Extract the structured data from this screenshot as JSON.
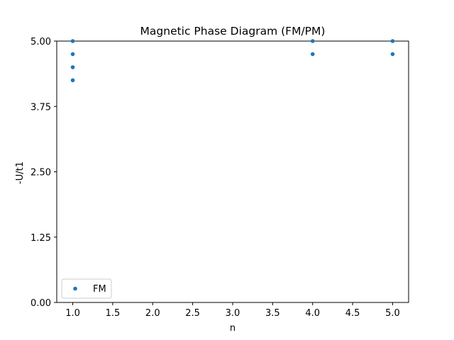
{
  "chart_data": {
    "type": "scatter",
    "title": "Magnetic Phase Diagram (FM/PM)",
    "xlabel": "n",
    "ylabel": "-U/t1",
    "xlim": [
      0.8,
      5.2
    ],
    "ylim": [
      0.0,
      5.0
    ],
    "xticks": [
      "1.0",
      "1.5",
      "2.0",
      "2.5",
      "3.0",
      "3.5",
      "4.0",
      "4.5",
      "5.0"
    ],
    "yticks": [
      "0.00",
      "1.25",
      "2.50",
      "3.75",
      "5.00"
    ],
    "grid": false,
    "legend_position": "lower-left",
    "series": [
      {
        "name": "FM",
        "color": "#1f77b4",
        "marker": "dot",
        "points": [
          {
            "x": 1.0,
            "y": 5.0
          },
          {
            "x": 1.0,
            "y": 4.75
          },
          {
            "x": 1.0,
            "y": 4.5
          },
          {
            "x": 1.0,
            "y": 4.25
          },
          {
            "x": 4.0,
            "y": 5.0
          },
          {
            "x": 4.0,
            "y": 4.75
          },
          {
            "x": 5.0,
            "y": 5.0
          },
          {
            "x": 5.0,
            "y": 4.75
          }
        ]
      }
    ]
  }
}
